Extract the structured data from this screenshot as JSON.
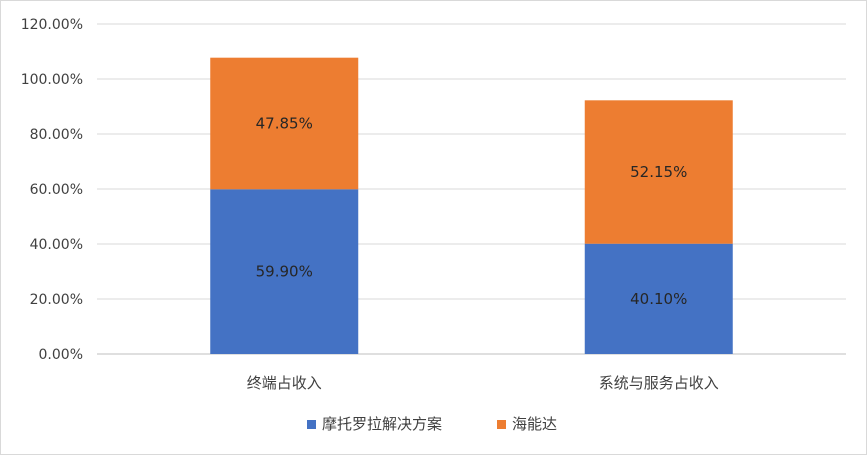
{
  "chart_data": {
    "type": "bar",
    "stacked": true,
    "categories": [
      "终端占收入",
      "系统与服务占收入"
    ],
    "series": [
      {
        "name": "摩托罗拉解决方案",
        "values": [
          59.9,
          40.1
        ],
        "labels": [
          "59.90%",
          "40.10%"
        ],
        "color": "#4472c4"
      },
      {
        "name": "海能达",
        "values": [
          47.85,
          52.15
        ],
        "labels": [
          "47.85%",
          "52.15%"
        ],
        "color": "#ed7d31"
      }
    ],
    "ylim": [
      0,
      120
    ],
    "yticks": [
      0,
      20,
      40,
      60,
      80,
      100,
      120
    ],
    "ytick_labels": [
      "0.00%",
      "20.00%",
      "40.00%",
      "60.00%",
      "80.00%",
      "100.00%",
      "120.00%"
    ],
    "grid": true,
    "legend_position": "bottom",
    "title": "",
    "xlabel": "",
    "ylabel": ""
  }
}
